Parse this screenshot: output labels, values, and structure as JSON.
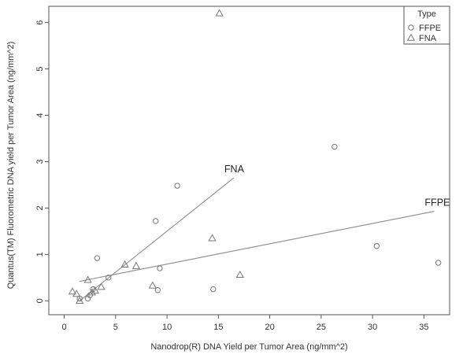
{
  "chart_data": {
    "type": "scatter",
    "xlabel": "Nanodrop(R) DNA Yield per Tumor Area (ng/mm^2)",
    "ylabel": "Quantus(TM) Fluorometric DNA yield per Tumor Area (ng/mm^2)",
    "xlim": [
      -1.5,
      37.5
    ],
    "ylim": [
      -0.3,
      6.35
    ],
    "xticks": [
      0,
      5,
      10,
      15,
      20,
      25,
      30,
      35
    ],
    "yticks": [
      0,
      1,
      2,
      3,
      4,
      5,
      6
    ],
    "grid": false,
    "legend": {
      "title": "Type",
      "position": "top-right",
      "entries": [
        {
          "label": "FFPE",
          "marker": "circle"
        },
        {
          "label": "FNA",
          "marker": "triangle"
        }
      ]
    },
    "series": [
      {
        "name": "FFPE",
        "marker": "circle",
        "points": [
          {
            "x": 1.5,
            "y": 0.05
          },
          {
            "x": 2.3,
            "y": 0.05
          },
          {
            "x": 2.5,
            "y": 0.12
          },
          {
            "x": 2.8,
            "y": 0.25
          },
          {
            "x": 3.2,
            "y": 0.92
          },
          {
            "x": 4.3,
            "y": 0.5
          },
          {
            "x": 8.9,
            "y": 1.72
          },
          {
            "x": 9.1,
            "y": 0.23
          },
          {
            "x": 9.3,
            "y": 0.7
          },
          {
            "x": 11.0,
            "y": 2.48
          },
          {
            "x": 14.5,
            "y": 0.25
          },
          {
            "x": 26.3,
            "y": 3.32
          },
          {
            "x": 30.4,
            "y": 1.18
          },
          {
            "x": 36.4,
            "y": 0.82
          }
        ]
      },
      {
        "name": "FNA",
        "marker": "triangle",
        "points": [
          {
            "x": 0.8,
            "y": 0.2
          },
          {
            "x": 1.2,
            "y": 0.15
          },
          {
            "x": 1.5,
            "y": 0.0
          },
          {
            "x": 2.3,
            "y": 0.45
          },
          {
            "x": 2.7,
            "y": 0.18
          },
          {
            "x": 3.0,
            "y": 0.22
          },
          {
            "x": 3.6,
            "y": 0.3
          },
          {
            "x": 5.9,
            "y": 0.78
          },
          {
            "x": 7.0,
            "y": 0.75
          },
          {
            "x": 8.6,
            "y": 0.33
          },
          {
            "x": 14.4,
            "y": 1.35
          },
          {
            "x": 15.1,
            "y": 6.2
          },
          {
            "x": 17.1,
            "y": 0.56
          }
        ]
      }
    ],
    "fit_lines": [
      {
        "label": "FNA",
        "x": [
          1.5,
          16.5
        ],
        "y": [
          0.0,
          2.65
        ]
      },
      {
        "label": "FFPE",
        "x": [
          1.5,
          36.0
        ],
        "y": [
          0.42,
          1.93
        ]
      }
    ]
  }
}
